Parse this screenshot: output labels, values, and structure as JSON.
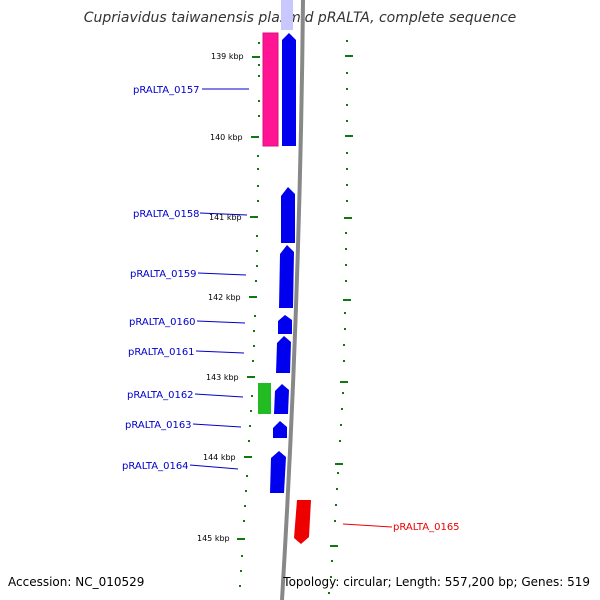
{
  "title": "Cupriavidus taiwanensis plasmid pRALTA, complete sequence",
  "accession_text": "Accession: NC_010529",
  "topology_text": "Topology: circular; Length: 557,200 bp; Genes: 519",
  "colors": {
    "forward_gene": "#0000ee",
    "reverse_gene": "#ff1493",
    "green_gene": "#22bb22",
    "red_gene": "#ee0000",
    "backbone": "#888888",
    "tick": "#117711"
  },
  "kbp_labels": [
    {
      "label": "139 kbp"
    },
    {
      "label": "140 kbp"
    },
    {
      "label": "141 kbp"
    },
    {
      "label": "142 kbp"
    },
    {
      "label": "143 kbp"
    },
    {
      "label": "144 kbp"
    },
    {
      "label": "145 kbp"
    }
  ],
  "gene_labels": [
    {
      "label": "pRALTA_0157"
    },
    {
      "label": "pRALTA_0158"
    },
    {
      "label": "pRALTA_0159"
    },
    {
      "label": "pRALTA_0160"
    },
    {
      "label": "pRALTA_0161"
    },
    {
      "label": "pRALTA_0162"
    },
    {
      "label": "pRALTA_0163"
    },
    {
      "label": "pRALTA_0164"
    },
    {
      "label": "pRALTA_0165"
    }
  ]
}
